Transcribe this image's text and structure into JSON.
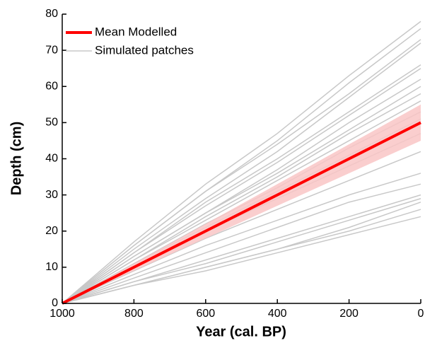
{
  "chart_data": {
    "type": "line",
    "xlabel": "Year (cal. BP)",
    "ylabel": "Depth (cm)",
    "x": [
      1000,
      800,
      600,
      400,
      200,
      0
    ],
    "xlim": [
      1000,
      0
    ],
    "xticks": [
      1000,
      800,
      600,
      400,
      200,
      0
    ],
    "ylim": [
      0,
      80
    ],
    "yticks": [
      0,
      10,
      20,
      30,
      40,
      50,
      60,
      70,
      80
    ],
    "band": {
      "color": "#f9c6c6",
      "lower": [
        0,
        9,
        18,
        27,
        36,
        45
      ],
      "upper": [
        0,
        11,
        22,
        33,
        44,
        55
      ]
    },
    "series": [
      {
        "name": "Mean Modelled",
        "color": "#ff0000",
        "values": [
          0,
          10,
          20,
          30,
          40,
          50
        ]
      },
      {
        "name": "Simulated patches",
        "color": "#c8c8c8",
        "values": [
          0,
          17,
          33,
          47,
          63,
          78
        ]
      },
      {
        "color": "#c8c8c8",
        "values": [
          0,
          16,
          31,
          45,
          61,
          76
        ]
      },
      {
        "color": "#c8c8c8",
        "values": [
          0,
          16,
          31,
          44,
          58,
          73
        ]
      },
      {
        "color": "#c8c8c8",
        "values": [
          0,
          15,
          29,
          42,
          57,
          72
        ]
      },
      {
        "color": "#c8c8c8",
        "values": [
          0,
          14,
          28,
          40,
          53,
          66
        ]
      },
      {
        "color": "#c8c8c8",
        "values": [
          0,
          14,
          27,
          39,
          52,
          65
        ]
      },
      {
        "color": "#c8c8c8",
        "values": [
          0,
          13,
          25,
          37,
          50,
          62
        ]
      },
      {
        "color": "#c8c8c8",
        "values": [
          0,
          13,
          25,
          36,
          48,
          60
        ]
      },
      {
        "color": "#c8c8c8",
        "values": [
          0,
          12,
          24,
          35,
          47,
          58
        ]
      },
      {
        "color": "#c8c8c8",
        "values": [
          0,
          12,
          23,
          34,
          45,
          56
        ]
      },
      {
        "color": "#c8c8c8",
        "values": [
          0,
          11,
          22,
          32,
          43,
          53
        ]
      },
      {
        "color": "#c8c8c8",
        "values": [
          0,
          11,
          21,
          31,
          41,
          51
        ]
      },
      {
        "color": "#c8c8c8",
        "values": [
          0,
          10,
          20,
          29,
          38,
          47
        ]
      },
      {
        "color": "#c8c8c8",
        "values": [
          0,
          9,
          18,
          26,
          34,
          42
        ]
      },
      {
        "color": "#c8c8c8",
        "values": [
          0,
          8,
          16,
          23,
          30,
          36
        ]
      },
      {
        "color": "#c8c8c8",
        "values": [
          0,
          7,
          14,
          21,
          28,
          33
        ]
      },
      {
        "color": "#c8c8c8",
        "values": [
          0,
          6,
          12,
          18,
          24,
          30
        ]
      },
      {
        "color": "#c8c8c8",
        "values": [
          0,
          6,
          11,
          17,
          23,
          29
        ]
      },
      {
        "color": "#c8c8c8",
        "values": [
          0,
          5,
          10,
          15,
          21,
          28
        ]
      },
      {
        "color": "#c8c8c8",
        "values": [
          0,
          5,
          10,
          15,
          20,
          26
        ]
      },
      {
        "color": "#c8c8c8",
        "values": [
          0,
          5,
          9,
          14,
          19,
          24
        ]
      }
    ]
  }
}
